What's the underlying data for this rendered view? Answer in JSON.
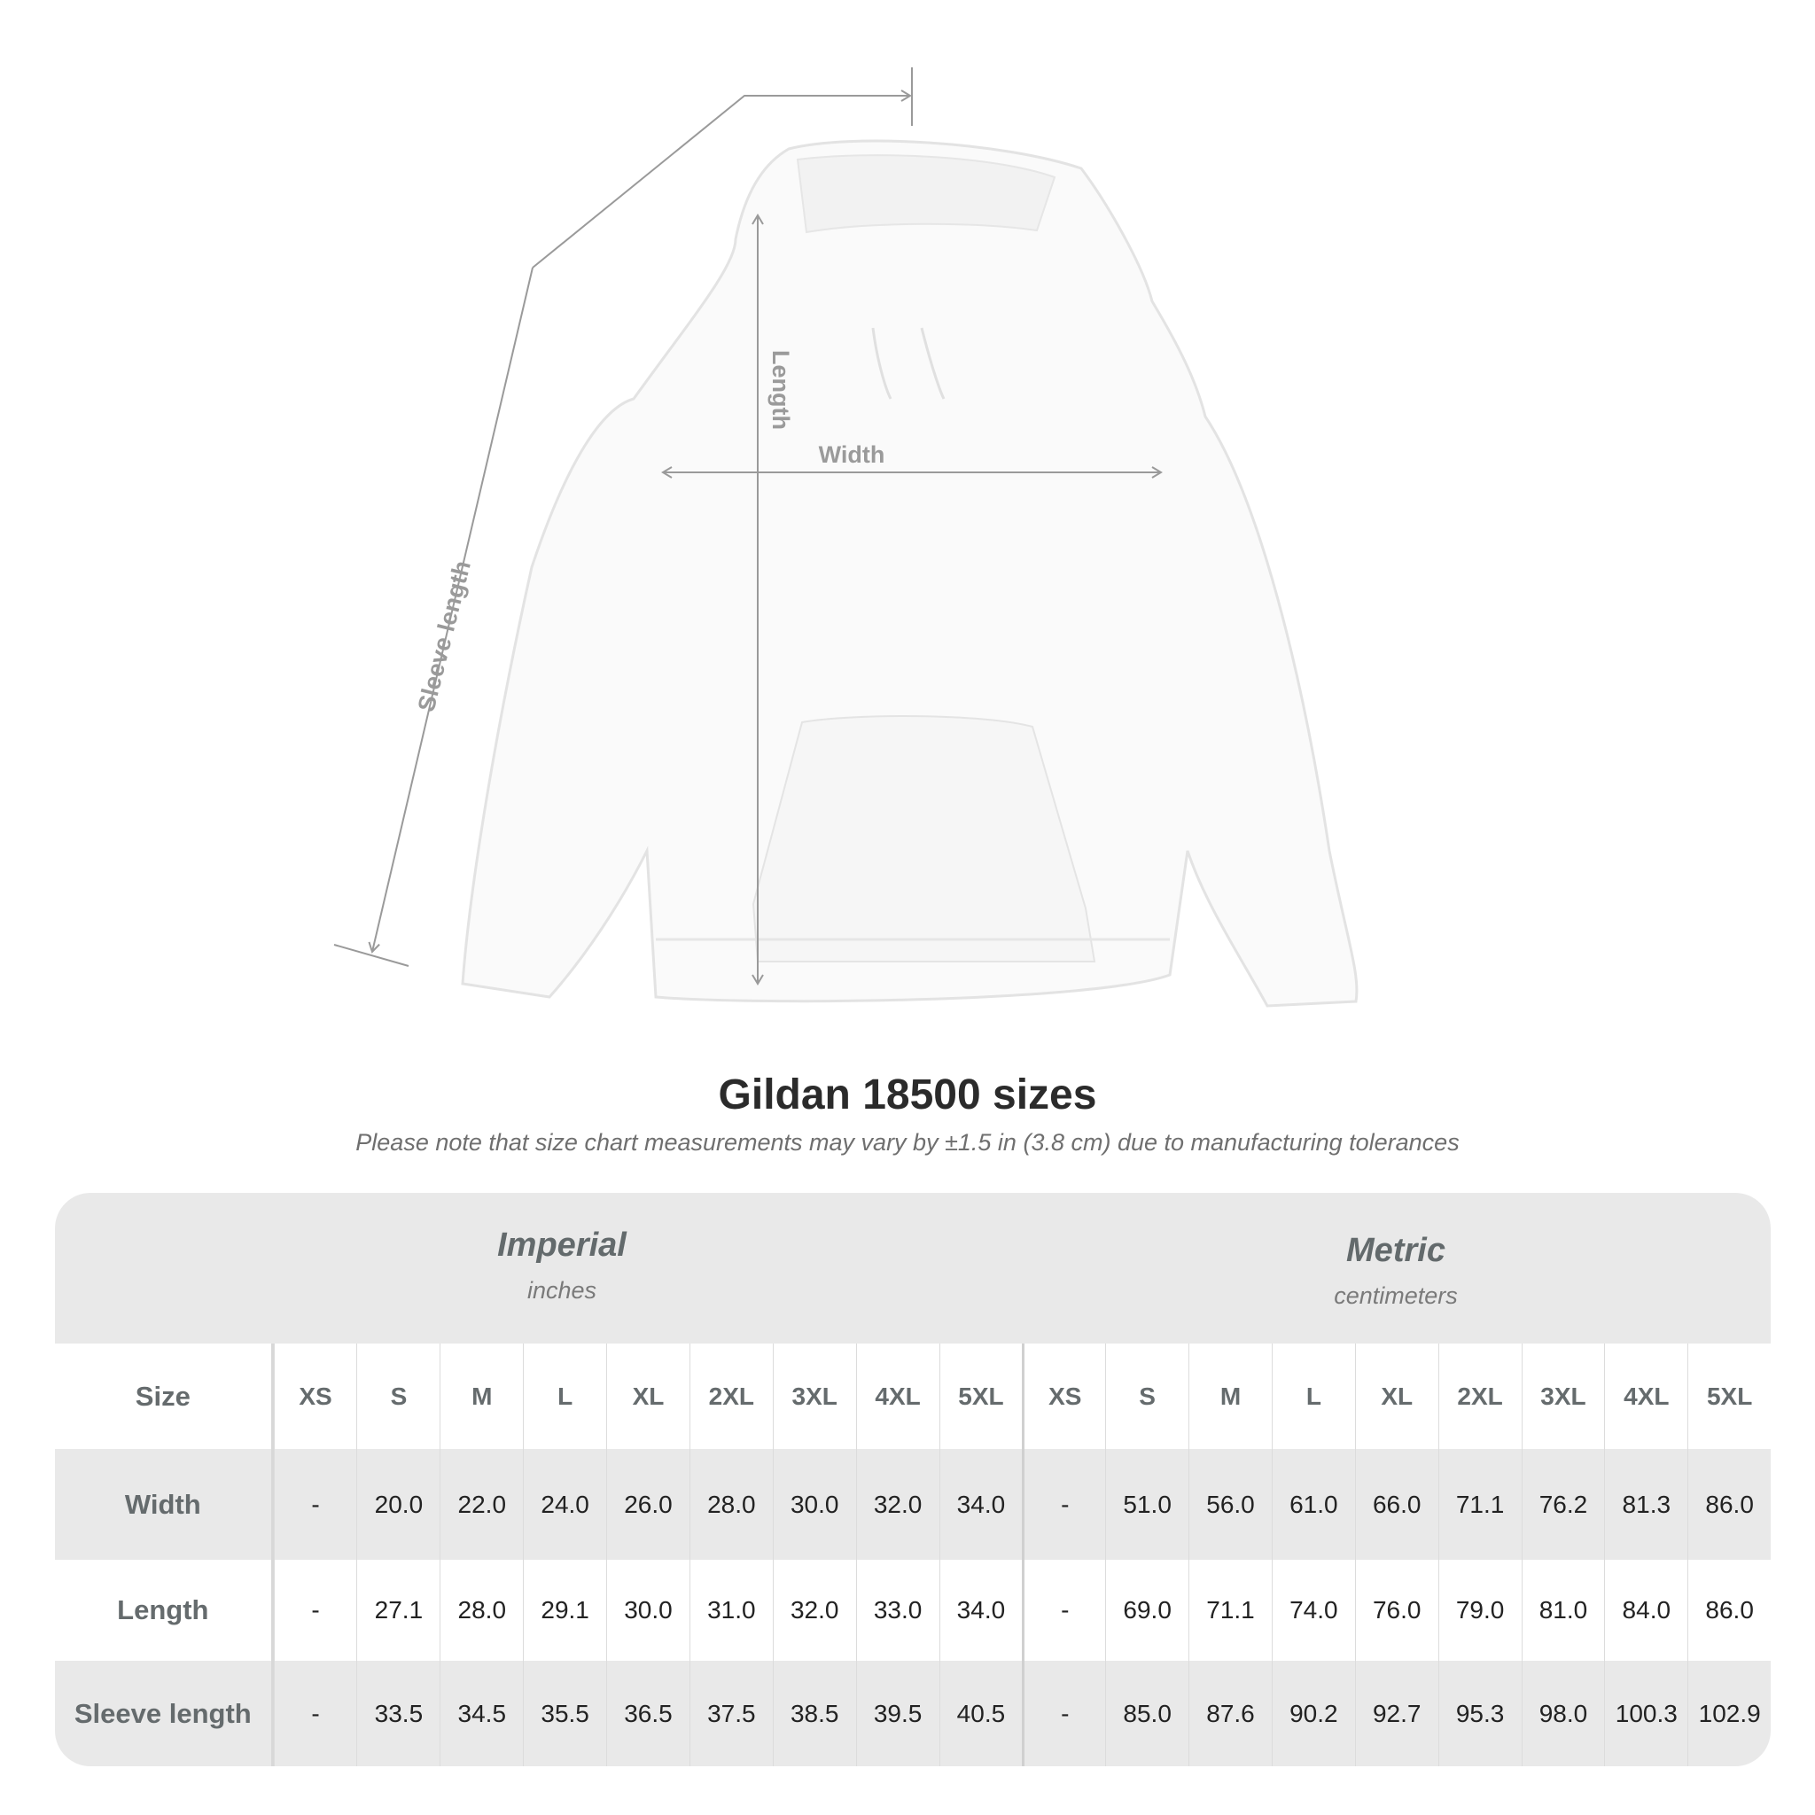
{
  "diagram": {
    "labels": {
      "sleeve": "Sleeve length",
      "length": "Length",
      "width": "Width"
    },
    "garment": "hoodie"
  },
  "title": "Gildan 18500 sizes",
  "note": "Please note that size chart measurements may vary by ±1.5 in (3.8 cm) due to manufacturing tolerances",
  "table": {
    "imperial": {
      "heading": "Imperial",
      "unit": "inches"
    },
    "metric": {
      "heading": "Metric",
      "unit": "centimeters"
    },
    "size_label": "Size",
    "sizes": [
      "XS",
      "S",
      "M",
      "L",
      "XL",
      "2XL",
      "3XL",
      "4XL",
      "5XL"
    ],
    "rows": [
      {
        "label": "Width",
        "imperial": [
          "-",
          "20.0",
          "22.0",
          "24.0",
          "26.0",
          "28.0",
          "30.0",
          "32.0",
          "34.0"
        ],
        "metric": [
          "-",
          "51.0",
          "56.0",
          "61.0",
          "66.0",
          "71.1",
          "76.2",
          "81.3",
          "86.0"
        ]
      },
      {
        "label": "Length",
        "imperial": [
          "-",
          "27.1",
          "28.0",
          "29.1",
          "30.0",
          "31.0",
          "32.0",
          "33.0",
          "34.0"
        ],
        "metric": [
          "-",
          "69.0",
          "71.1",
          "74.0",
          "76.0",
          "79.0",
          "81.0",
          "84.0",
          "86.0"
        ]
      },
      {
        "label": "Sleeve length",
        "imperial": [
          "-",
          "33.5",
          "34.5",
          "35.5",
          "36.5",
          "37.5",
          "38.5",
          "39.5",
          "40.5"
        ],
        "metric": [
          "-",
          "85.0",
          "87.6",
          "90.2",
          "92.7",
          "95.3",
          "98.0",
          "100.3",
          "102.9"
        ]
      }
    ]
  },
  "colors": {
    "band": "#e9e9e9",
    "label": "#656b6d",
    "measure": "#9a9a9a"
  }
}
